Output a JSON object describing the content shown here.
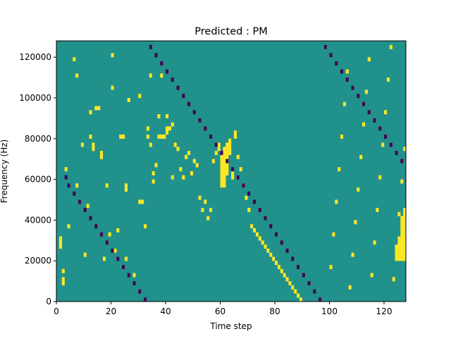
{
  "chart_data": {
    "type": "heatmap",
    "title": "Predicted : PM",
    "xlabel": "Time step",
    "ylabel": "Frequency (Hz)",
    "xlim": [
      0,
      128
    ],
    "ylim": [
      0,
      128000
    ],
    "x_ticks": [
      0,
      20,
      40,
      60,
      80,
      100,
      120
    ],
    "y_ticks": [
      0,
      20000,
      40000,
      60000,
      80000,
      100000,
      120000
    ],
    "grid": false,
    "legend": "none",
    "n_time_steps": 128,
    "n_frequency_bins": 64,
    "bin_height_hz": 2000,
    "values_legend": {
      "-1": "low",
      "0": "neutral",
      "1": "high"
    },
    "colors": {
      "background": "#21918c",
      "high": "#fde725",
      "low": "#440154"
    },
    "cells": {
      "high": [
        [
          1,
          15
        ],
        [
          1,
          14
        ],
        [
          1,
          13
        ],
        [
          2,
          7
        ],
        [
          2,
          5
        ],
        [
          2,
          4
        ],
        [
          3,
          32
        ],
        [
          4,
          18
        ],
        [
          6,
          59
        ],
        [
          7,
          55
        ],
        [
          7,
          28
        ],
        [
          9,
          38
        ],
        [
          10,
          11
        ],
        [
          11,
          23
        ],
        [
          12,
          46
        ],
        [
          12,
          40
        ],
        [
          13,
          38
        ],
        [
          13,
          37
        ],
        [
          14,
          47
        ],
        [
          15,
          47
        ],
        [
          16,
          35
        ],
        [
          16,
          36
        ],
        [
          17,
          10
        ],
        [
          18,
          28
        ],
        [
          19,
          16
        ],
        [
          20,
          60
        ],
        [
          20,
          52
        ],
        [
          21,
          12
        ],
        [
          22,
          17
        ],
        [
          23,
          40
        ],
        [
          24,
          40
        ],
        [
          25,
          10
        ],
        [
          25,
          27
        ],
        [
          25,
          28
        ],
        [
          26,
          49
        ],
        [
          28,
          6
        ],
        [
          30,
          50
        ],
        [
          30,
          24
        ],
        [
          31,
          24
        ],
        [
          32,
          18
        ],
        [
          33,
          40
        ],
        [
          33,
          42
        ],
        [
          34,
          55
        ],
        [
          34,
          38
        ],
        [
          35,
          31
        ],
        [
          35,
          29
        ],
        [
          36,
          33
        ],
        [
          37,
          45
        ],
        [
          37,
          40
        ],
        [
          38,
          55
        ],
        [
          38,
          40
        ],
        [
          39,
          40
        ],
        [
          40,
          45
        ],
        [
          40,
          42
        ],
        [
          40,
          41
        ],
        [
          41,
          42
        ],
        [
          42,
          43
        ],
        [
          42,
          30
        ],
        [
          43,
          38
        ],
        [
          44,
          37
        ],
        [
          45,
          32
        ],
        [
          46,
          30
        ],
        [
          47,
          35
        ],
        [
          48,
          36
        ],
        [
          49,
          31
        ],
        [
          50,
          34
        ],
        [
          51,
          33
        ],
        [
          52,
          25
        ],
        [
          53,
          22
        ],
        [
          54,
          24
        ],
        [
          55,
          20
        ],
        [
          56,
          22
        ],
        [
          57,
          34
        ],
        [
          58,
          36
        ],
        [
          59,
          38
        ],
        [
          59,
          37
        ],
        [
          60,
          36
        ],
        [
          60,
          35
        ],
        [
          60,
          34
        ],
        [
          60,
          33
        ],
        [
          60,
          32
        ],
        [
          60,
          31
        ],
        [
          60,
          30
        ],
        [
          60,
          29
        ],
        [
          60,
          28
        ],
        [
          61,
          37
        ],
        [
          61,
          36
        ],
        [
          61,
          35
        ],
        [
          61,
          34
        ],
        [
          61,
          33
        ],
        [
          61,
          32
        ],
        [
          61,
          31
        ],
        [
          61,
          30
        ],
        [
          61,
          29
        ],
        [
          61,
          28
        ],
        [
          62,
          38
        ],
        [
          62,
          37
        ],
        [
          62,
          36
        ],
        [
          62,
          35
        ],
        [
          62,
          34
        ],
        [
          62,
          33
        ],
        [
          62,
          32
        ],
        [
          62,
          31
        ],
        [
          63,
          39
        ],
        [
          63,
          38
        ],
        [
          63,
          37
        ],
        [
          63,
          36
        ],
        [
          64,
          31
        ],
        [
          64,
          30
        ],
        [
          65,
          40
        ],
        [
          65,
          41
        ],
        [
          66,
          35
        ],
        [
          66,
          30
        ],
        [
          67,
          32
        ],
        [
          68,
          28
        ],
        [
          69,
          25
        ],
        [
          70,
          22
        ],
        [
          71,
          18
        ],
        [
          72,
          17
        ],
        [
          73,
          16
        ],
        [
          74,
          15
        ],
        [
          75,
          14
        ],
        [
          76,
          13
        ],
        [
          77,
          12
        ],
        [
          78,
          11
        ],
        [
          79,
          10
        ],
        [
          80,
          9
        ],
        [
          81,
          8
        ],
        [
          82,
          7
        ],
        [
          83,
          6
        ],
        [
          84,
          5
        ],
        [
          85,
          4
        ],
        [
          86,
          3
        ],
        [
          87,
          2
        ],
        [
          88,
          1
        ],
        [
          89,
          0
        ],
        [
          100,
          8
        ],
        [
          101,
          16
        ],
        [
          102,
          24
        ],
        [
          103,
          32
        ],
        [
          104,
          40
        ],
        [
          105,
          48
        ],
        [
          106,
          56
        ],
        [
          107,
          3
        ],
        [
          108,
          11
        ],
        [
          109,
          19
        ],
        [
          110,
          27
        ],
        [
          111,
          35
        ],
        [
          112,
          43
        ],
        [
          113,
          51
        ],
        [
          114,
          59
        ],
        [
          115,
          6
        ],
        [
          116,
          14
        ],
        [
          117,
          22
        ],
        [
          118,
          30
        ],
        [
          119,
          38
        ],
        [
          120,
          46
        ],
        [
          121,
          54
        ],
        [
          122,
          62
        ],
        [
          123,
          5
        ],
        [
          124,
          13
        ],
        [
          125,
          21
        ],
        [
          126,
          29
        ],
        [
          127,
          37
        ],
        [
          124,
          10
        ],
        [
          124,
          11
        ],
        [
          124,
          12
        ],
        [
          125,
          10
        ],
        [
          125,
          11
        ],
        [
          125,
          12
        ],
        [
          125,
          13
        ],
        [
          125,
          14
        ],
        [
          125,
          15
        ],
        [
          126,
          10
        ],
        [
          126,
          11
        ],
        [
          126,
          12
        ],
        [
          126,
          13
        ],
        [
          126,
          14
        ],
        [
          126,
          15
        ],
        [
          126,
          16
        ],
        [
          126,
          17
        ],
        [
          126,
          18
        ],
        [
          126,
          19
        ],
        [
          126,
          20
        ],
        [
          127,
          10
        ],
        [
          127,
          11
        ],
        [
          127,
          12
        ],
        [
          127,
          13
        ],
        [
          127,
          14
        ],
        [
          127,
          15
        ],
        [
          127,
          16
        ],
        [
          127,
          17
        ],
        [
          127,
          18
        ],
        [
          127,
          19
        ],
        [
          127,
          20
        ],
        [
          127,
          21
        ],
        [
          127,
          22
        ]
      ],
      "low": [
        [
          3,
          30
        ],
        [
          4,
          28
        ],
        [
          6,
          26
        ],
        [
          8,
          24
        ],
        [
          10,
          22
        ],
        [
          12,
          20
        ],
        [
          14,
          18
        ],
        [
          16,
          16
        ],
        [
          18,
          14
        ],
        [
          20,
          12
        ],
        [
          22,
          10
        ],
        [
          24,
          8
        ],
        [
          26,
          6
        ],
        [
          28,
          4
        ],
        [
          30,
          2
        ],
        [
          32,
          0
        ],
        [
          34,
          62
        ],
        [
          36,
          60
        ],
        [
          38,
          58
        ],
        [
          40,
          56
        ],
        [
          42,
          54
        ],
        [
          44,
          52
        ],
        [
          46,
          50
        ],
        [
          48,
          48
        ],
        [
          50,
          46
        ],
        [
          52,
          44
        ],
        [
          54,
          42
        ],
        [
          56,
          40
        ],
        [
          58,
          38
        ],
        [
          60,
          36
        ],
        [
          62,
          34
        ],
        [
          64,
          32
        ],
        [
          66,
          30
        ],
        [
          68,
          28
        ],
        [
          70,
          26
        ],
        [
          72,
          24
        ],
        [
          74,
          22
        ],
        [
          76,
          20
        ],
        [
          78,
          18
        ],
        [
          80,
          16
        ],
        [
          82,
          14
        ],
        [
          84,
          12
        ],
        [
          86,
          10
        ],
        [
          88,
          8
        ],
        [
          90,
          6
        ],
        [
          92,
          4
        ],
        [
          94,
          2
        ],
        [
          96,
          0
        ],
        [
          98,
          62
        ],
        [
          100,
          60
        ],
        [
          102,
          58
        ],
        [
          104,
          56
        ],
        [
          106,
          54
        ],
        [
          108,
          52
        ],
        [
          110,
          50
        ],
        [
          112,
          48
        ],
        [
          114,
          46
        ],
        [
          116,
          44
        ],
        [
          118,
          42
        ],
        [
          120,
          40
        ],
        [
          122,
          38
        ],
        [
          124,
          36
        ],
        [
          126,
          34
        ]
      ]
    }
  }
}
